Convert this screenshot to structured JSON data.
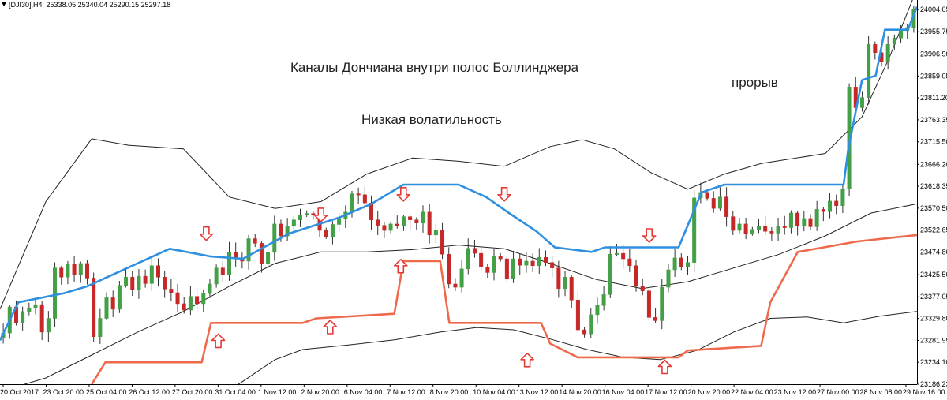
{
  "header": {
    "symbol": "[DJI30],H4",
    "ohlc": "25338.05 25340.04 25290.15 25297.18"
  },
  "annotations": {
    "title": "Каналы Дончиана внутри полос Боллинджера",
    "low_volatility": "Низкая волатильность",
    "breakout": "прорыв"
  },
  "colors": {
    "bull": "#43a047",
    "bear": "#c62828",
    "donchian_upper": "#2f8fe0",
    "donchian_lower": "#ef6a4c",
    "bollinger": "#222222",
    "arrow": "#e53935"
  },
  "chart_data": {
    "type": "candlestick",
    "title": "",
    "ylim": [
      23186.23,
      24025
    ],
    "y_ticks": [
      "24004.05",
      "23955.75",
      "23906.90",
      "23859.05",
      "23811.20",
      "23763.35",
      "23715.50",
      "23666.20",
      "23618.35",
      "23570.50",
      "23522.65",
      "23474.80",
      "23425.50",
      "23377.05",
      "23329.80",
      "23281.95",
      "23234.10",
      "23186.23"
    ],
    "x_ticks": [
      "20 Oct 2017",
      "23 Oct 20:00",
      "25 Oct 04:00",
      "26 Oct 12:00",
      "27 Oct 20:00",
      "31 Oct 04:00",
      "1 Nov 12:00",
      "2 Nov 20:00",
      "6 Nov 04:00",
      "7 Nov 12:00",
      "8 Nov 20:00",
      "10 Nov 04:00",
      "13 Nov 12:00",
      "14 Nov 20:00",
      "16 Nov 04:00",
      "17 Nov 12:00",
      "20 Nov 20:00",
      "22 Nov 04:00",
      "23 Nov 12:00",
      "27 Nov 00:00",
      "28 Nov 08:00",
      "29 Nov 16:00"
    ],
    "closes": [
      23298,
      23355,
      23320,
      23345,
      23352,
      23360,
      23300,
      23330,
      23440,
      23420,
      23448,
      23425,
      23450,
      23418,
      23290,
      23330,
      23375,
      23350,
      23402,
      23420,
      23392,
      23422,
      23406,
      23445,
      23420,
      23394,
      23386,
      23362,
      23348,
      23378,
      23362,
      23384,
      23405,
      23440,
      23426,
      23475,
      23460,
      23455,
      23504,
      23494,
      23450,
      23474,
      23536,
      23510,
      23531,
      23545,
      23556,
      23559,
      23558,
      23522,
      23508,
      23535,
      23548,
      23562,
      23602,
      23600,
      23582,
      23545,
      23533,
      23522,
      23536,
      23532,
      23552,
      23545,
      23538,
      23562,
      23512,
      23522,
      23470,
      23405,
      23398,
      23438,
      23483,
      23472,
      23442,
      23430,
      23465,
      23460,
      23416,
      23460,
      23446,
      23455,
      23445,
      23463,
      23452,
      23440,
      23395,
      23420,
      23370,
      23305,
      23296,
      23338,
      23358,
      23382,
      23470,
      23472,
      23460,
      23445,
      23400,
      23390,
      23332,
      23325,
      23398,
      23436,
      23462,
      23442,
      23452,
      23593,
      23605,
      23592,
      23570,
      23595,
      23552,
      23522,
      23536,
      23515,
      23524,
      23532,
      23520,
      23516,
      23532,
      23528,
      23560,
      23532,
      23548,
      23530,
      23568,
      23563,
      23586,
      23576,
      23613,
      23835,
      23790,
      23812,
      23928,
      23910,
      23890,
      23928,
      23942,
      23958,
      23965,
      24004
    ],
    "donchian_upper": [
      [
        0,
        23281.95
      ],
      [
        0.02,
        23365
      ],
      [
        0.07,
        23385
      ],
      [
        0.095,
        23400
      ],
      [
        0.185,
        23482
      ],
      [
        0.23,
        23465
      ],
      [
        0.265,
        23460
      ],
      [
        0.315,
        23515
      ],
      [
        0.37,
        23550
      ],
      [
        0.405,
        23580
      ],
      [
        0.44,
        23622
      ],
      [
        0.5,
        23622
      ],
      [
        0.53,
        23595
      ],
      [
        0.555,
        23560
      ],
      [
        0.585,
        23520
      ],
      [
        0.605,
        23485
      ],
      [
        0.645,
        23475
      ],
      [
        0.66,
        23485
      ],
      [
        0.74,
        23485
      ],
      [
        0.765,
        23605
      ],
      [
        0.79,
        23622
      ],
      [
        0.92,
        23622
      ],
      [
        0.925,
        23700
      ],
      [
        0.94,
        23850
      ],
      [
        0.955,
        23860
      ],
      [
        0.965,
        23960
      ],
      [
        0.99,
        23960
      ],
      [
        1.0,
        24010
      ]
    ],
    "donchian_lower": [
      [
        0.1,
        23186.23
      ],
      [
        0.115,
        23234.1
      ],
      [
        0.22,
        23234.1
      ],
      [
        0.23,
        23320
      ],
      [
        0.33,
        23320
      ],
      [
        0.345,
        23330
      ],
      [
        0.43,
        23340
      ],
      [
        0.44,
        23455
      ],
      [
        0.48,
        23455
      ],
      [
        0.49,
        23320
      ],
      [
        0.59,
        23320
      ],
      [
        0.6,
        23275
      ],
      [
        0.63,
        23245
      ],
      [
        0.74,
        23245
      ],
      [
        0.75,
        23260
      ],
      [
        0.83,
        23270
      ],
      [
        0.84,
        23365
      ],
      [
        0.87,
        23475
      ],
      [
        0.935,
        23498
      ],
      [
        1.0,
        23512
      ]
    ],
    "bollinger_upper": [
      [
        0,
        23350
      ],
      [
        0.05,
        23585
      ],
      [
        0.1,
        23722
      ],
      [
        0.14,
        23708
      ],
      [
        0.2,
        23700
      ],
      [
        0.25,
        23595
      ],
      [
        0.3,
        23570
      ],
      [
        0.35,
        23585
      ],
      [
        0.4,
        23645
      ],
      [
        0.45,
        23680
      ],
      [
        0.5,
        23673
      ],
      [
        0.55,
        23662
      ],
      [
        0.6,
        23705
      ],
      [
        0.635,
        23720
      ],
      [
        0.67,
        23700
      ],
      [
        0.71,
        23648
      ],
      [
        0.75,
        23612
      ],
      [
        0.79,
        23645
      ],
      [
        0.83,
        23668
      ],
      [
        0.9,
        23690
      ],
      [
        0.94,
        23770
      ],
      [
        0.97,
        23900
      ],
      [
        1.0,
        24050
      ]
    ],
    "bollinger_middle": [
      [
        0,
        23170
      ],
      [
        0.05,
        23200
      ],
      [
        0.1,
        23250
      ],
      [
        0.15,
        23300
      ],
      [
        0.2,
        23345
      ],
      [
        0.25,
        23400
      ],
      [
        0.3,
        23450
      ],
      [
        0.35,
        23475
      ],
      [
        0.4,
        23475
      ],
      [
        0.45,
        23480
      ],
      [
        0.5,
        23490
      ],
      [
        0.55,
        23482
      ],
      [
        0.6,
        23450
      ],
      [
        0.65,
        23415
      ],
      [
        0.7,
        23395
      ],
      [
        0.75,
        23410
      ],
      [
        0.8,
        23440
      ],
      [
        0.85,
        23470
      ],
      [
        0.9,
        23510
      ],
      [
        0.95,
        23560
      ],
      [
        1.0,
        23580
      ]
    ],
    "bollinger_lower": [
      [
        0.26,
        23186
      ],
      [
        0.3,
        23240
      ],
      [
        0.33,
        23262
      ],
      [
        0.38,
        23272
      ],
      [
        0.43,
        23283
      ],
      [
        0.48,
        23300
      ],
      [
        0.52,
        23310
      ],
      [
        0.56,
        23305
      ],
      [
        0.6,
        23285
      ],
      [
        0.64,
        23262
      ],
      [
        0.68,
        23245
      ],
      [
        0.72,
        23240
      ],
      [
        0.76,
        23260
      ],
      [
        0.8,
        23300
      ],
      [
        0.84,
        23330
      ],
      [
        0.88,
        23333
      ],
      [
        0.92,
        23320
      ],
      [
        0.96,
        23335
      ],
      [
        1.0,
        23345
      ]
    ],
    "arrows_down": [
      [
        0.225,
        23514
      ],
      [
        0.35,
        23555
      ],
      [
        0.44,
        23600
      ],
      [
        0.55,
        23600
      ],
      [
        0.708,
        23510
      ]
    ],
    "arrows_up": [
      [
        0.238,
        23282
      ],
      [
        0.36,
        23312
      ],
      [
        0.437,
        23445
      ],
      [
        0.575,
        23240
      ],
      [
        0.725,
        23225
      ]
    ]
  }
}
